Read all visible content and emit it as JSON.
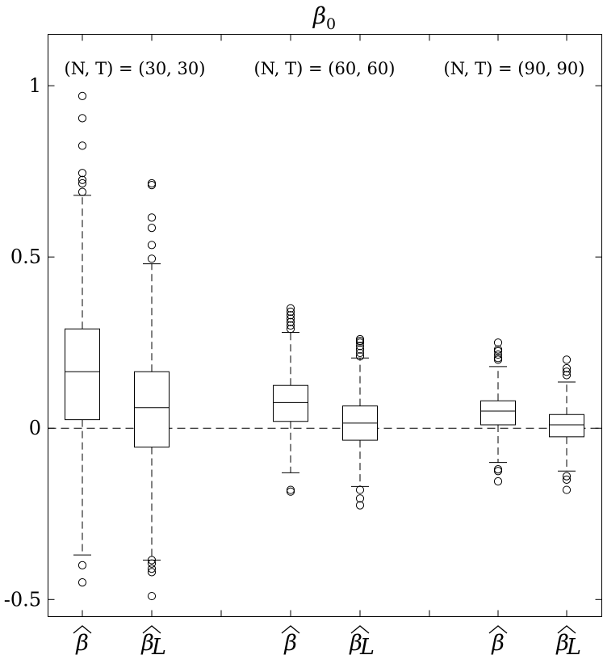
{
  "chart_data": {
    "type": "box",
    "title": "β0",
    "ylim": [
      -0.55,
      1.15
    ],
    "yticks": [
      {
        "value": -0.5,
        "label": "-0.5"
      },
      {
        "value": 0,
        "label": "0"
      },
      {
        "value": 0.5,
        "label": "0.5"
      },
      {
        "value": 1,
        "label": "1"
      }
    ],
    "reference_line": 0,
    "groups": [
      {
        "label": "(N, T) = (30, 30)",
        "boxes": [
          {
            "name": "β̂",
            "q1": 0.025,
            "median": 0.165,
            "q3": 0.29,
            "whisker_low": -0.37,
            "whisker_high": 0.68,
            "outliers": [
              0.97,
              0.905,
              0.825,
              0.745,
              0.725,
              0.715,
              0.69,
              -0.4,
              -0.45
            ]
          },
          {
            "name": "β̂L",
            "q1": -0.055,
            "median": 0.06,
            "q3": 0.165,
            "whisker_low": -0.385,
            "whisker_high": 0.48,
            "outliers": [
              0.715,
              0.71,
              0.615,
              0.585,
              0.535,
              0.495,
              -0.385,
              -0.395,
              -0.41,
              -0.42,
              -0.49
            ]
          }
        ]
      },
      {
        "label": "(N, T) = (60, 60)",
        "boxes": [
          {
            "name": "β̂",
            "q1": 0.02,
            "median": 0.075,
            "q3": 0.125,
            "whisker_low": -0.13,
            "whisker_high": 0.28,
            "outliers": [
              0.35,
              0.34,
              0.33,
              0.32,
              0.31,
              0.3,
              0.29,
              -0.18,
              -0.185
            ]
          },
          {
            "name": "β̂L",
            "q1": -0.035,
            "median": 0.015,
            "q3": 0.065,
            "whisker_low": -0.17,
            "whisker_high": 0.205,
            "outliers": [
              0.26,
              0.255,
              0.25,
              0.24,
              0.23,
              0.22,
              0.21,
              -0.18,
              -0.205,
              -0.225
            ]
          }
        ]
      },
      {
        "label": "(N, T) = (90, 90)",
        "boxes": [
          {
            "name": "β̂",
            "q1": 0.01,
            "median": 0.05,
            "q3": 0.08,
            "whisker_low": -0.1,
            "whisker_high": 0.18,
            "outliers": [
              0.25,
              0.23,
              0.225,
              0.215,
              0.205,
              0.2,
              -0.12,
              -0.125,
              -0.155
            ]
          },
          {
            "name": "β̂L",
            "q1": -0.025,
            "median": 0.01,
            "q3": 0.04,
            "whisker_low": -0.125,
            "whisker_high": 0.135,
            "outliers": [
              0.2,
              0.175,
              0.165,
              0.155,
              -0.14,
              -0.15,
              -0.18
            ]
          }
        ]
      }
    ]
  }
}
